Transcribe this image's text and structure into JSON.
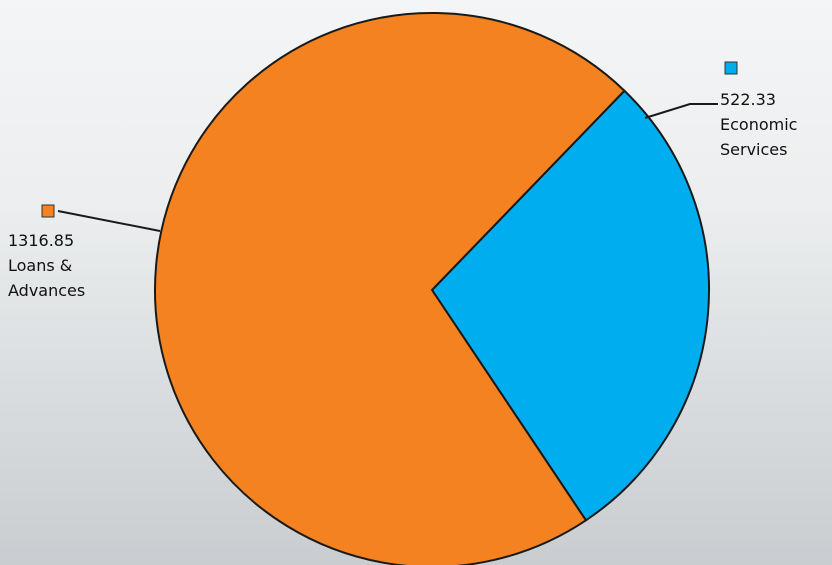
{
  "chart_data": {
    "type": "pie",
    "categories": [
      "Economic Services",
      "Loans & Advances"
    ],
    "values": [
      522.33,
      1316.85
    ],
    "colors": [
      "#00adef",
      "#f58220"
    ]
  }
}
